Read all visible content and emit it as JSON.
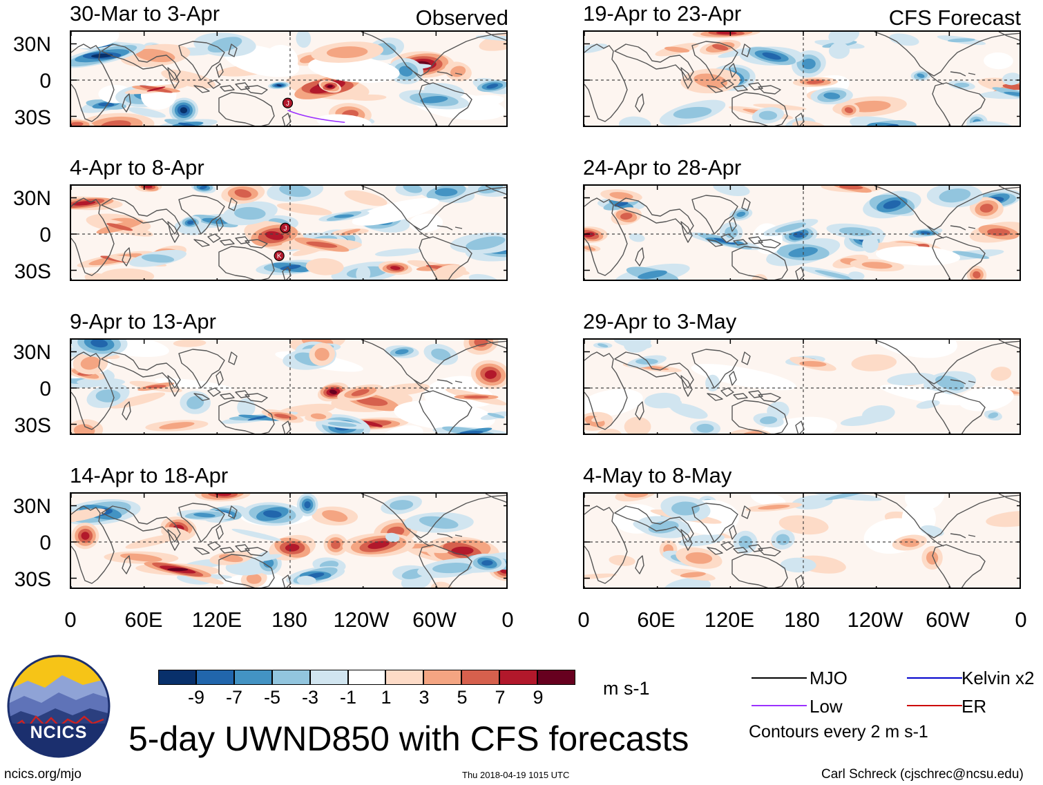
{
  "colors": {
    "scale": [
      "#08306b",
      "#2166ac",
      "#4393c3",
      "#92c5de",
      "#d1e5f0",
      "#ffffff",
      "#fddbc7",
      "#f4a582",
      "#d6604d",
      "#b2182b",
      "#67001f"
    ],
    "land_outline": "#555555",
    "mjo": "#000000",
    "low": "#9b30ff",
    "kelvin": "#0000cc",
    "er": "#cc0000",
    "logo_sky": "#f6c417",
    "logo_mountain_dark": "#2b3f7f",
    "logo_mountain_light": "#8fa3d6",
    "logo_ring": "#1b2f6e"
  },
  "left_column": {
    "tag": "Observed",
    "panels": [
      {
        "title": "30-Mar to 3-Apr",
        "markers": [
          {
            "lon": 178,
            "lat": -19,
            "label": "J"
          }
        ]
      },
      {
        "title": "4-Apr to 8-Apr",
        "markers": [
          {
            "lon": 176,
            "lat": 5,
            "label": "J"
          },
          {
            "lon": 171,
            "lat": -18,
            "label": "K"
          }
        ]
      },
      {
        "title": "9-Apr to 13-Apr",
        "markers": []
      },
      {
        "title": "14-Apr to 18-Apr",
        "markers": []
      }
    ]
  },
  "right_column": {
    "tag": "CFS Forecast",
    "panels": [
      {
        "title": "19-Apr to 23-Apr"
      },
      {
        "title": "24-Apr to 28-Apr"
      },
      {
        "title": "29-Apr to 3-May"
      },
      {
        "title": "4-May to 8-May"
      }
    ]
  },
  "lat_labels": [
    "30N",
    "0",
    "30S"
  ],
  "lon_labels": [
    "0",
    "60E",
    "120E",
    "180",
    "120W",
    "60W",
    "0"
  ],
  "colorbar": {
    "ticks": [
      "-9",
      "-7",
      "-5",
      "-3",
      "-1",
      "1",
      "3",
      "5",
      "7",
      "9"
    ],
    "units": "m s-1"
  },
  "legend": {
    "items": [
      {
        "label": "MJO",
        "color_key": "mjo"
      },
      {
        "label": "Kelvin x2",
        "color_key": "kelvin"
      },
      {
        "label": "Low",
        "color_key": "low"
      },
      {
        "label": "ER",
        "color_key": "er"
      }
    ],
    "contour_note": "Contours every 2 m s-1"
  },
  "logo": {
    "text": "NCICS"
  },
  "main_title": "5-day UWND850 with CFS forecasts",
  "footer": {
    "url": "ncics.org/mjo",
    "timestamp": "Thu 2018-04-19 1015 UTC",
    "credit": "Carl Schreck (cjschrec@ncsu.edu)"
  }
}
